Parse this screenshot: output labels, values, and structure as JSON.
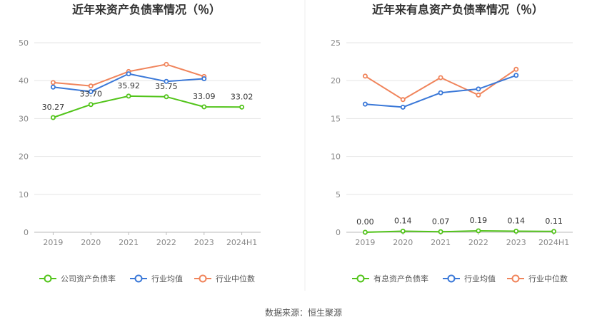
{
  "chart_data": [
    {
      "type": "line",
      "title": "近年来资产负债率情况（％）",
      "categories": [
        "2019",
        "2020",
        "2021",
        "2022",
        "2023",
        "2024H1"
      ],
      "ylim": [
        0,
        50
      ],
      "yticks": [
        0,
        10,
        20,
        30,
        40,
        50
      ],
      "grid": true,
      "legend_position": "bottom",
      "series": [
        {
          "name": "公司资产负债率",
          "color": "#52c41a",
          "labeled": true,
          "values": [
            30.27,
            33.7,
            35.92,
            35.75,
            33.09,
            33.02
          ],
          "labels": [
            "30.27",
            "33.70",
            "35.92",
            "35.75",
            "33.09",
            "33.02"
          ]
        },
        {
          "name": "行业均值",
          "color": "#3a78d8",
          "labeled": false,
          "values": [
            38.3,
            37.1,
            41.8,
            39.8,
            40.5,
            null
          ]
        },
        {
          "name": "行业中位数",
          "color": "#f0845b",
          "labeled": false,
          "values": [
            39.5,
            38.6,
            42.4,
            44.3,
            41.1,
            null
          ]
        }
      ]
    },
    {
      "type": "line",
      "title": "近年来有息资产负债率情况（％）",
      "categories": [
        "2019",
        "2020",
        "2021",
        "2022",
        "2023",
        "2024H1"
      ],
      "ylim": [
        0,
        25
      ],
      "yticks": [
        0,
        5,
        10,
        15,
        20,
        25
      ],
      "grid": true,
      "legend_position": "bottom",
      "series": [
        {
          "name": "有息资产负债率",
          "color": "#52c41a",
          "labeled": true,
          "values": [
            0.0,
            0.14,
            0.07,
            0.19,
            0.14,
            0.11
          ],
          "labels": [
            "0.00",
            "0.14",
            "0.07",
            "0.19",
            "0.14",
            "0.11"
          ]
        },
        {
          "name": "行业均值",
          "color": "#3a78d8",
          "labeled": false,
          "values": [
            16.9,
            16.5,
            18.4,
            18.9,
            20.7,
            null
          ]
        },
        {
          "name": "行业中位数",
          "color": "#f0845b",
          "labeled": false,
          "values": [
            20.6,
            17.5,
            20.4,
            18.1,
            21.5,
            null
          ]
        }
      ]
    }
  ],
  "source": "数据来源：恒生聚源"
}
